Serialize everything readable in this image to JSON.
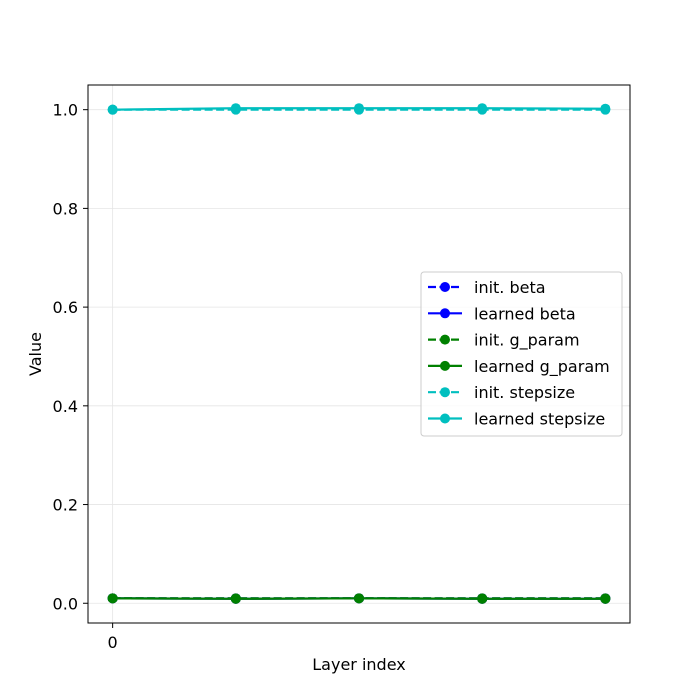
{
  "chart_data": {
    "type": "line",
    "title": "",
    "xlabel": "Layer index",
    "ylabel": "Value",
    "x": [
      0,
      1,
      2,
      3,
      4
    ],
    "xticks": [
      0
    ],
    "xtick_labels": [
      "0"
    ],
    "xlim": [
      -0.2,
      4.2
    ],
    "ylim": [
      -0.04,
      1.05
    ],
    "yticks": [
      0.0,
      0.2,
      0.4,
      0.6,
      0.8,
      1.0
    ],
    "ytick_labels": [
      "0.0",
      "0.2",
      "0.4",
      "0.6",
      "0.8",
      "1.0"
    ],
    "grid": true,
    "legend_position": "center-right",
    "series": [
      {
        "name": "init. beta",
        "key": "init-beta",
        "color": "#0000ff",
        "style": "dashed",
        "values": [
          0.01,
          0.01,
          0.01,
          0.01,
          0.01
        ]
      },
      {
        "name": "learned beta",
        "key": "learned-beta",
        "color": "#0000ff",
        "style": "solid",
        "values": [
          0.01,
          0.009,
          0.01,
          0.009,
          0.009
        ]
      },
      {
        "name": "init. g_param",
        "key": "init-g-param",
        "color": "#008000",
        "style": "dashed",
        "values": [
          0.01,
          0.01,
          0.01,
          0.01,
          0.01
        ]
      },
      {
        "name": "learned g_param",
        "key": "learned-g-param",
        "color": "#008000",
        "style": "solid",
        "values": [
          0.01,
          0.009,
          0.01,
          0.009,
          0.009
        ]
      },
      {
        "name": "init. stepsize",
        "key": "init-stepsize",
        "color": "#00bfbf",
        "style": "dashed",
        "values": [
          1.0,
          1.0,
          1.0,
          1.0,
          1.0
        ]
      },
      {
        "name": "learned stepsize",
        "key": "learned-stepsize",
        "color": "#00bfbf",
        "style": "solid",
        "values": [
          1.0,
          1.003,
          1.003,
          1.003,
          1.002
        ]
      }
    ]
  }
}
